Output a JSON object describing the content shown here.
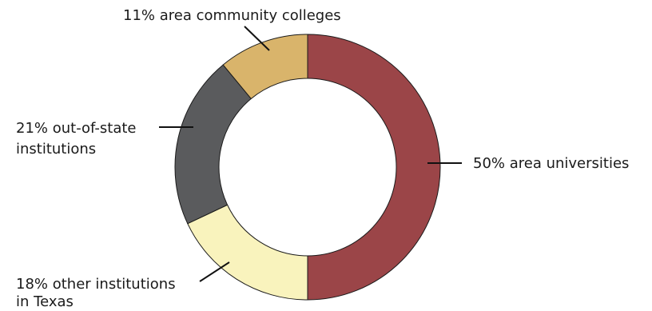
{
  "chart_data": {
    "type": "pie",
    "variant": "donut",
    "slices": [
      {
        "label_lines": [
          "50% area universities"
        ],
        "value": 50,
        "color": "#9b4548"
      },
      {
        "label_lines": [
          "18% other institutions",
          "in Texas"
        ],
        "value": 18,
        "color": "#f9f3bd"
      },
      {
        "label_lines": [
          "21% out-of-state",
          "institutions"
        ],
        "value": 21,
        "color": "#5a5b5d"
      },
      {
        "label_lines": [
          "11% area community colleges"
        ],
        "value": 11,
        "color": "#d9b46b"
      }
    ]
  }
}
